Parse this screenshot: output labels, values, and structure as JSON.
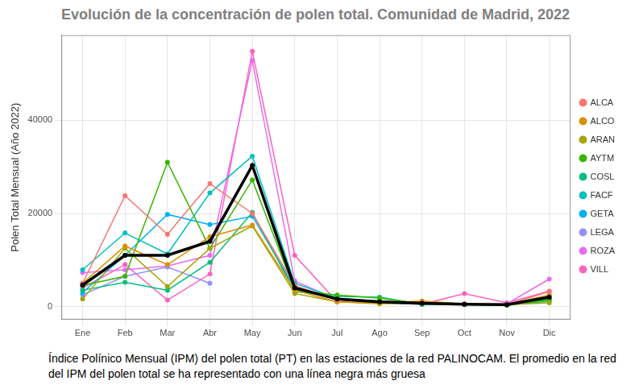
{
  "chart_data": {
    "type": "line",
    "title": "Evolución de la concentración de polen total. Comunidad de Madrid, 2022",
    "y_label": "Polen Total Mensual (Año 2022)",
    "caption": "Índice Polínico Mensual (IPM) del polen total (PT) en las estaciones de la red PALINOCAM. El promedio en la red del IPM del polen total se ha representado con una línea negra más gruesa",
    "categories": [
      "Ene",
      "Feb",
      "Mar",
      "Abr",
      "May",
      "Jun",
      "Jul",
      "Ago",
      "Sep",
      "Oct",
      "Nov",
      "Dic"
    ],
    "series": [
      {
        "name": "ALCA",
        "color": "#F8766D",
        "values": [
          5000,
          23800,
          15500,
          26400,
          20000,
          4500,
          1500,
          1000,
          700,
          500,
          400,
          3200
        ]
      },
      {
        "name": "ALCO",
        "color": "#D89000",
        "values": [
          5000,
          13000,
          9000,
          15000,
          17500,
          3500,
          1000,
          800,
          1200,
          600,
          400,
          2500
        ]
      },
      {
        "name": "ARAN",
        "color": "#A3A500",
        "values": [
          1600,
          12500,
          4300,
          12500,
          17300,
          2800,
          1000,
          600,
          800,
          500,
          400,
          800
        ]
      },
      {
        "name": "AYTM",
        "color": "#39B600",
        "values": [
          4500,
          6500,
          31000,
          12500,
          27200,
          3500,
          2500,
          1800,
          600,
          500,
          300,
          1500
        ]
      },
      {
        "name": "COSL",
        "color": "#00BF7D",
        "values": [
          3500,
          5200,
          3500,
          9500,
          20200,
          3200,
          2200,
          2000,
          500,
          400,
          300,
          1200
        ]
      },
      {
        "name": "FACF",
        "color": "#00BFC4",
        "values": [
          7900,
          15800,
          11300,
          24400,
          32300,
          5000,
          1800,
          1200,
          500,
          400,
          300,
          1500
        ]
      },
      {
        "name": "GETA",
        "color": "#00B0F6",
        "values": [
          3000,
          11000,
          19800,
          17600,
          19400,
          4000,
          1500,
          900,
          500,
          400,
          300,
          1800
        ]
      },
      {
        "name": "LEGA",
        "color": "#9590FF",
        "values": [
          2500,
          6500,
          8500,
          5000,
          null,
          null,
          null,
          null,
          null,
          null,
          null,
          null
        ]
      },
      {
        "name": "ROZA",
        "color": "#E76BF3",
        "values": [
          7300,
          7900,
          8700,
          11000,
          52800,
          5500,
          1500,
          800,
          500,
          500,
          600,
          5900
        ]
      },
      {
        "name": "VILL",
        "color": "#FF62BC",
        "values": [
          4000,
          9000,
          1400,
          7000,
          54800,
          11000,
          1000,
          800,
          500,
          2800,
          800,
          3300
        ]
      },
      {
        "name": null,
        "color": "#000000",
        "values": [
          4600,
          11000,
          11000,
          14000,
          30300,
          4000,
          1600,
          1000,
          700,
          500,
          400,
          2000
        ]
      }
    ],
    "ylim": [
      -2800,
      58300
    ],
    "yticks": [
      0,
      20000,
      40000
    ],
    "grid": true,
    "legend": "right",
    "marker": "circle"
  }
}
